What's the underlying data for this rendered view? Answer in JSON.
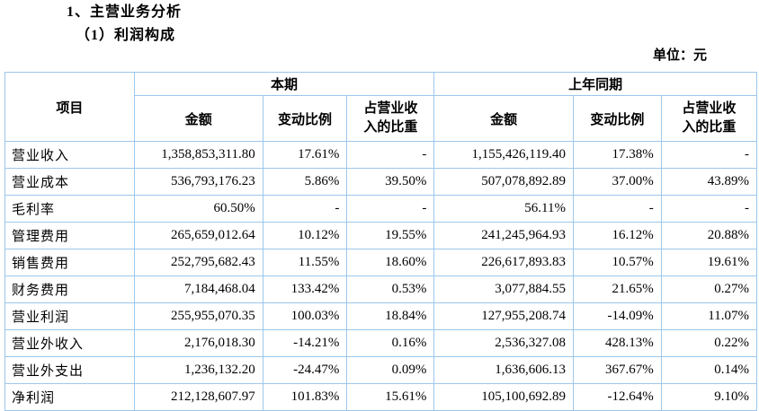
{
  "page": {
    "heading1": "1、主营业务分析",
    "heading2": "（1）利润构成",
    "unit_label": "单位：元"
  },
  "colors": {
    "table_border": "#9cc7ec",
    "text": "#000000",
    "background": "#ffffff"
  },
  "table": {
    "header": {
      "item": "项目",
      "current_period": "本期",
      "prior_period": "上年同期",
      "amount": "金额",
      "change_ratio": "变动比例",
      "revenue_share": "占营业收\n入的比重"
    },
    "rows": [
      {
        "label": "营业收入",
        "values": [
          "1,358,853,311.80",
          "17.61%",
          "-",
          "1,155,426,119.40",
          "17.38%",
          "-"
        ]
      },
      {
        "label": "营业成本",
        "values": [
          "536,793,176.23",
          "5.86%",
          "39.50%",
          "507,078,892.89",
          "37.00%",
          "43.89%"
        ]
      },
      {
        "label": "毛利率",
        "values": [
          "60.50%",
          "-",
          "-",
          "56.11%",
          "-",
          "-"
        ]
      },
      {
        "label": "管理费用",
        "values": [
          "265,659,012.64",
          "10.12%",
          "19.55%",
          "241,245,964.93",
          "16.12%",
          "20.88%"
        ]
      },
      {
        "label": "销售费用",
        "values": [
          "252,795,682.43",
          "11.55%",
          "18.60%",
          "226,617,893.83",
          "10.57%",
          "19.61%"
        ]
      },
      {
        "label": "财务费用",
        "values": [
          "7,184,468.04",
          "133.42%",
          "0.53%",
          "3,077,884.55",
          "21.65%",
          "0.27%"
        ]
      },
      {
        "label": "营业利润",
        "values": [
          "255,955,070.35",
          "100.03%",
          "18.84%",
          "127,955,208.74",
          "-14.09%",
          "11.07%"
        ]
      },
      {
        "label": "营业外收入",
        "values": [
          "2,176,018.30",
          "-14.21%",
          "0.16%",
          "2,536,327.08",
          "428.13%",
          "0.22%"
        ]
      },
      {
        "label": "营业外支出",
        "values": [
          "1,236,132.20",
          "-24.47%",
          "0.09%",
          "1,636,606.13",
          "367.67%",
          "0.14%"
        ]
      },
      {
        "label": "净利润",
        "values": [
          "212,128,607.97",
          "101.83%",
          "15.61%",
          "105,100,692.89",
          "-12.64%",
          "9.10%"
        ]
      }
    ]
  }
}
